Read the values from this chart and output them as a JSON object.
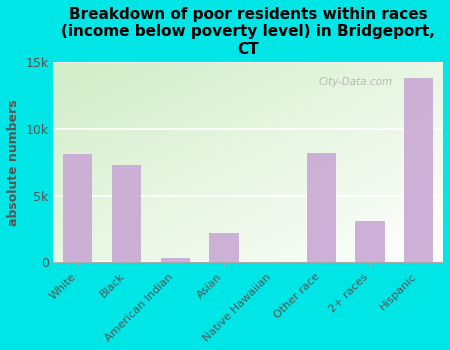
{
  "title": "Breakdown of poor residents within races\n(income below poverty level) in Bridgeport,\nCT",
  "categories": [
    "White",
    "Black",
    "American Indian",
    "Asian",
    "Native Hawaiian",
    "Other race",
    "2+ races",
    "Hispanic"
  ],
  "values": [
    8100,
    7300,
    300,
    2200,
    0,
    8200,
    3100,
    13800
  ],
  "bar_color": "#c9a8d4",
  "ylabel": "absolute numbers",
  "ylabel_color": "#555555",
  "background_color": "#00e5e5",
  "ylim": [
    0,
    15000
  ],
  "yticks": [
    0,
    5000,
    10000,
    15000
  ],
  "ytick_labels": [
    "0",
    "5k",
    "10k",
    "15k"
  ],
  "watermark": "City-Data.com",
  "title_fontsize": 11,
  "grid_color": "#cccccc"
}
